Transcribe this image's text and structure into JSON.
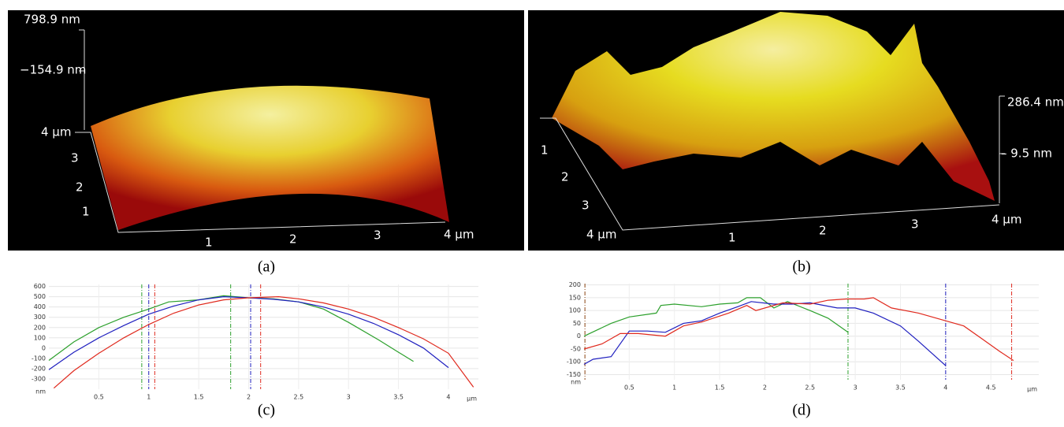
{
  "images": [
    {
      "caption": "(a)",
      "z_labels": [
        "798.9 nm",
        "−154.9 nm"
      ],
      "depth_labels": [
        "4 µm",
        "3",
        "2",
        "1"
      ],
      "x_labels": [
        "1",
        "2",
        "3",
        "4 µm"
      ]
    },
    {
      "caption": "(b)",
      "z_labels": [
        "286.4 nm",
        "– 9.5 nm"
      ],
      "depth_labels": [
        "1",
        "2",
        "3",
        "4 µm"
      ],
      "x_labels": [
        "1",
        "2",
        "3",
        "4 µm"
      ]
    }
  ],
  "chart_data": [
    {
      "type": "line",
      "caption": "(c)",
      "y_label": "nm",
      "x_label": "µm",
      "xlim": [
        0,
        4.3
      ],
      "ylim": [
        -400,
        620
      ],
      "xticks": [
        0.5,
        1,
        1.5,
        2,
        2.5,
        3,
        3.5,
        4
      ],
      "yticks": [
        600,
        500,
        400,
        300,
        200,
        100,
        0,
        -100,
        -200,
        -300
      ],
      "grid": true,
      "cursors": [
        {
          "color": "#2ca02c",
          "x": 0.93
        },
        {
          "color": "#2ca02c",
          "x": 1.82
        },
        {
          "color": "#1f1fbf",
          "x": 1.0
        },
        {
          "color": "#1f1fbf",
          "x": 2.02
        },
        {
          "color": "#e0291d",
          "x": 1.06
        },
        {
          "color": "#e0291d",
          "x": 2.12
        }
      ],
      "series": [
        {
          "color": "#2ca02c",
          "x": [
            0,
            0.25,
            0.5,
            0.75,
            1.0,
            1.2,
            1.5,
            1.75,
            2.0,
            2.25,
            2.5,
            2.75,
            3.0,
            3.3,
            3.5,
            3.65
          ],
          "values": [
            -120,
            60,
            200,
            300,
            380,
            450,
            470,
            510,
            490,
            480,
            450,
            380,
            250,
            80,
            -40,
            -130
          ]
        },
        {
          "color": "#1f1fbf",
          "x": [
            0,
            0.25,
            0.5,
            0.75,
            1.0,
            1.25,
            1.5,
            1.75,
            2.0,
            2.25,
            2.5,
            2.75,
            3.0,
            3.25,
            3.5,
            3.75,
            4.0
          ],
          "values": [
            -210,
            -40,
            100,
            220,
            330,
            410,
            470,
            500,
            490,
            475,
            450,
            400,
            330,
            240,
            130,
            0,
            -190
          ]
        },
        {
          "color": "#e0291d",
          "x": [
            0.05,
            0.25,
            0.5,
            0.75,
            1.0,
            1.25,
            1.5,
            1.75,
            2.0,
            2.3,
            2.5,
            2.75,
            3.0,
            3.25,
            3.5,
            3.75,
            4.0,
            4.25
          ],
          "values": [
            -390,
            -220,
            -50,
            100,
            230,
            340,
            420,
            470,
            490,
            500,
            480,
            440,
            380,
            300,
            200,
            90,
            -50,
            -380
          ]
        }
      ]
    },
    {
      "type": "line",
      "caption": "(d)",
      "y_label": "nm",
      "x_label": "µm",
      "xlim": [
        0,
        5.03
      ],
      "ylim": [
        -170,
        205
      ],
      "xticks": [
        0.5,
        1,
        1.5,
        2,
        2.5,
        3,
        3.5,
        4,
        4.5
      ],
      "yticks": [
        200,
        150,
        100,
        50,
        0,
        -50,
        -100,
        -150
      ],
      "grid": true,
      "cursors": [
        {
          "color": "#8b4513",
          "x": 0.01
        },
        {
          "color": "#2ca02c",
          "x": 2.92
        },
        {
          "color": "#1f1fbf",
          "x": 4.0
        },
        {
          "color": "#e0291d",
          "x": 4.73
        }
      ],
      "series": [
        {
          "color": "#2ca02c",
          "x": [
            0,
            0.3,
            0.5,
            0.8,
            0.85,
            1.0,
            1.3,
            1.5,
            1.7,
            1.8,
            1.95,
            2.1,
            2.25,
            2.5,
            2.7,
            2.92
          ],
          "values": [
            0,
            50,
            75,
            90,
            120,
            125,
            115,
            125,
            130,
            150,
            150,
            110,
            135,
            100,
            70,
            15
          ]
        },
        {
          "color": "#1f1fbf",
          "x": [
            0,
            0.1,
            0.3,
            0.5,
            0.7,
            0.9,
            1.1,
            1.3,
            1.5,
            1.7,
            1.85,
            2.1,
            2.3,
            2.5,
            2.8,
            3.0,
            3.2,
            3.5,
            3.7,
            4.0
          ],
          "values": [
            -110,
            -90,
            -80,
            20,
            20,
            15,
            50,
            60,
            90,
            115,
            135,
            125,
            125,
            130,
            110,
            110,
            90,
            40,
            -20,
            -115
          ]
        },
        {
          "color": "#e0291d",
          "x": [
            0,
            0.2,
            0.4,
            0.6,
            0.9,
            1.1,
            1.3,
            1.6,
            1.8,
            1.9,
            2.2,
            2.5,
            2.7,
            2.9,
            3.1,
            3.2,
            3.4,
            3.7,
            4.0,
            4.2,
            4.4,
            4.6,
            4.75
          ],
          "values": [
            -50,
            -30,
            10,
            10,
            0,
            40,
            55,
            90,
            120,
            100,
            130,
            125,
            140,
            145,
            145,
            150,
            110,
            90,
            60,
            40,
            -10,
            -60,
            -95
          ]
        }
      ]
    }
  ]
}
